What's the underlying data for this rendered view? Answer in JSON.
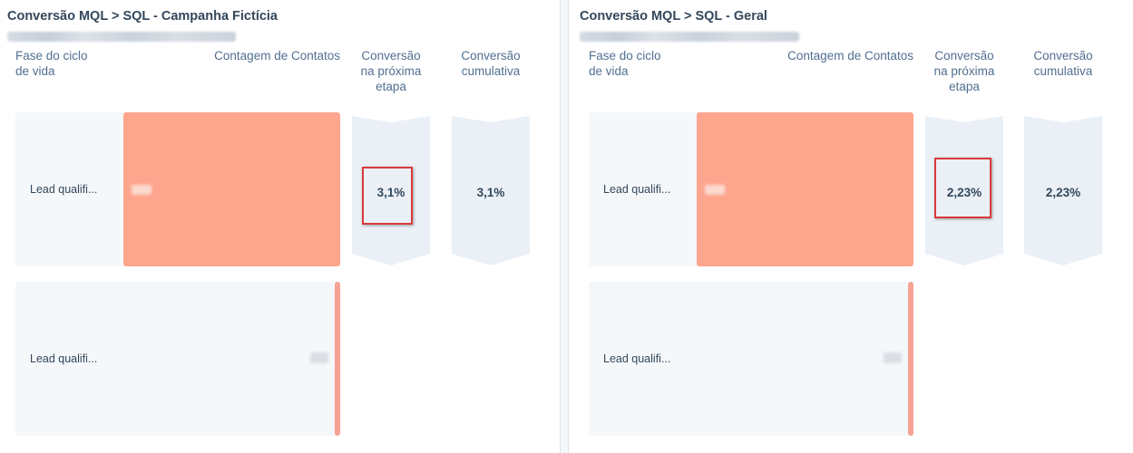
{
  "colors": {
    "bar_full": "#fea58e",
    "bar_thin": "#f8a195",
    "row_bg": "#f5f8fa",
    "chevron_bg": "#eaf0f6",
    "highlight_border": "#d93a3a",
    "title_text": "#33475b",
    "header_text": "#516f90"
  },
  "panels": [
    {
      "title": "Conversão MQL > SQL - Campanha Fictícia",
      "columns": {
        "fase": [
          "Fase do ciclo",
          "de vida"
        ],
        "contagem": "Contagem de Contatos",
        "conversao": [
          "Conversão",
          "na próxima",
          "etapa"
        ],
        "cumulativa": [
          "Conversão",
          "cumulativa"
        ]
      },
      "rows": [
        {
          "label": "Lead qualifi...",
          "bar_fraction": 1.0
        },
        {
          "label": "Lead qualifi...",
          "bar_fraction": 0.031
        }
      ],
      "conversion_next": "3,1%",
      "conversion_cumulative": "3,1%"
    },
    {
      "title": "Conversão MQL > SQL - Geral",
      "columns": {
        "fase": [
          "Fase do ciclo",
          "de vida"
        ],
        "contagem": "Contagem de Contatos",
        "conversao": [
          "Conversão",
          "na próxima",
          "etapa"
        ],
        "cumulativa": [
          "Conversão",
          "cumulativa"
        ]
      },
      "rows": [
        {
          "label": "Lead qualifi...",
          "bar_fraction": 1.0
        },
        {
          "label": "Lead qualifi...",
          "bar_fraction": 0.0223
        }
      ],
      "conversion_next": "2,23%",
      "conversion_cumulative": "2,23%"
    }
  ]
}
